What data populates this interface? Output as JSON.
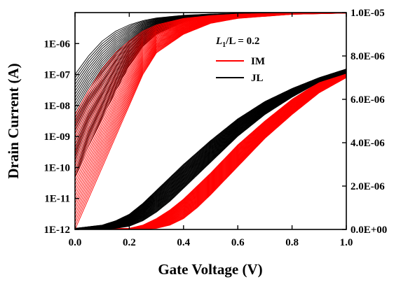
{
  "chart_data": {
    "type": "line",
    "title": "",
    "xlabel": "Gate Voltage (V)",
    "ylabel_left": "Drain Current (A)",
    "ylabel_right": "",
    "xlim": [
      0.0,
      1.0
    ],
    "ylim_left_log": [
      1e-12,
      1e-05
    ],
    "ylim_right_linear": [
      0.0,
      1e-05
    ],
    "x_ticks": [
      "0.0",
      "0.2",
      "0.4",
      "0.6",
      "0.8",
      "1.0"
    ],
    "y_ticks_left": [
      "1E-12",
      "1E-11",
      "1E-10",
      "1E-09",
      "1E-08",
      "1E-07",
      "1E-06"
    ],
    "y_ticks_right": [
      "0.0E+00",
      "2.0E-06",
      "4.0E-06",
      "6.0E-06",
      "8.0E-06",
      "1.0E-05"
    ],
    "annotation": {
      "L1": "L",
      "L1_sub": "1",
      "rest": "/L = 0.2",
      "L_italic": "L"
    },
    "legend": {
      "position": "upper-middle",
      "entries": [
        {
          "label": "IM",
          "color": "#ff0000"
        },
        {
          "label": "JL",
          "color": "#000000"
        }
      ]
    },
    "series": [
      {
        "name": "IM",
        "axis": "left-log",
        "color": "#ff0000",
        "x": [
          0.0,
          0.05,
          0.1,
          0.15,
          0.2,
          0.25,
          0.3,
          0.4,
          0.5,
          0.6,
          0.8,
          1.0
        ],
        "y_median": [
          3e-10,
          2e-09,
          1e-08,
          5e-08,
          2e-07,
          6e-07,
          1.5e-06,
          4e-06,
          6.5e-06,
          8e-06,
          9.3e-06,
          9.8e-06
        ],
        "y_low": [
          1e-12,
          1e-11,
          1e-10,
          1e-09,
          1e-08,
          1e-07,
          5e-07,
          2e-06,
          4.5e-06,
          6.5e-06,
          8.8e-06,
          9.6e-06
        ],
        "y_high": [
          5e-09,
          3e-08,
          1.5e-07,
          5e-07,
          1.2e-06,
          2.5e-06,
          4e-06,
          6.5e-06,
          8e-06,
          9e-06,
          9.6e-06,
          9.9e-06
        ]
      },
      {
        "name": "JL",
        "axis": "left-log",
        "color": "#000000",
        "x": [
          0.0,
          0.05,
          0.1,
          0.15,
          0.2,
          0.25,
          0.3,
          0.4,
          0.5,
          0.6,
          0.8,
          1.0
        ],
        "y_median": [
          1e-08,
          6e-08,
          2.5e-07,
          8e-07,
          2e-06,
          3.5e-06,
          5e-06,
          7e-06,
          8.3e-06,
          9e-06,
          9.6e-06,
          9.9e-06
        ],
        "y_low": [
          5e-11,
          5e-10,
          4e-09,
          3e-08,
          2e-07,
          8e-07,
          2e-06,
          5e-06,
          7e-06,
          8.3e-06,
          9.3e-06,
          9.8e-06
        ],
        "y_high": [
          1e-07,
          4e-07,
          1.2e-06,
          2.5e-06,
          4e-06,
          5.5e-06,
          6.7e-06,
          8.2e-06,
          9e-06,
          9.5e-06,
          9.8e-06,
          1e-05
        ]
      },
      {
        "name": "IM",
        "axis": "right-linear",
        "color": "#ff0000",
        "x": [
          0.0,
          0.2,
          0.25,
          0.3,
          0.35,
          0.4,
          0.45,
          0.5,
          0.6,
          0.7,
          0.8,
          0.9,
          1.0
        ],
        "y_median": [
          0.0,
          0.0,
          5e-08,
          2e-07,
          5e-07,
          9e-07,
          1.5e-06,
          2.1e-06,
          3.4e-06,
          4.6e-06,
          5.7e-06,
          6.6e-06,
          7.2e-06
        ],
        "y_low": [
          0.0,
          0.0,
          0.0,
          5e-08,
          2e-07,
          5e-07,
          1e-06,
          1.6e-06,
          2.9e-06,
          4.2e-06,
          5.3e-06,
          6.3e-06,
          7e-06
        ],
        "y_high": [
          0.0,
          5e-08,
          2e-07,
          5e-07,
          9e-07,
          1.4e-06,
          2e-06,
          2.6e-06,
          3.9e-06,
          5e-06,
          6e-06,
          6.8e-06,
          7.3e-06
        ]
      },
      {
        "name": "JL",
        "axis": "right-linear",
        "color": "#000000",
        "x": [
          0.0,
          0.1,
          0.15,
          0.2,
          0.25,
          0.3,
          0.35,
          0.4,
          0.5,
          0.6,
          0.7,
          0.8,
          0.9,
          1.0
        ],
        "y_median": [
          0.0,
          5e-08,
          1.5e-07,
          3.5e-07,
          7e-07,
          1.2e-06,
          1.8e-06,
          2.4e-06,
          3.6e-06,
          4.7e-06,
          5.6e-06,
          6.3e-06,
          6.9e-06,
          7.3e-06
        ],
        "y_low": [
          0.0,
          0.0,
          5e-08,
          1.5e-07,
          4e-07,
          8e-07,
          1.3e-06,
          1.9e-06,
          3.1e-06,
          4.3e-06,
          5.3e-06,
          6.1e-06,
          6.8e-06,
          7.2e-06
        ],
        "y_high": [
          5e-08,
          2e-07,
          4e-07,
          7e-07,
          1.2e-06,
          1.8e-06,
          2.4e-06,
          3e-06,
          4.1e-06,
          5.1e-06,
          5.9e-06,
          6.5e-06,
          7e-06,
          7.4e-06
        ]
      }
    ]
  }
}
